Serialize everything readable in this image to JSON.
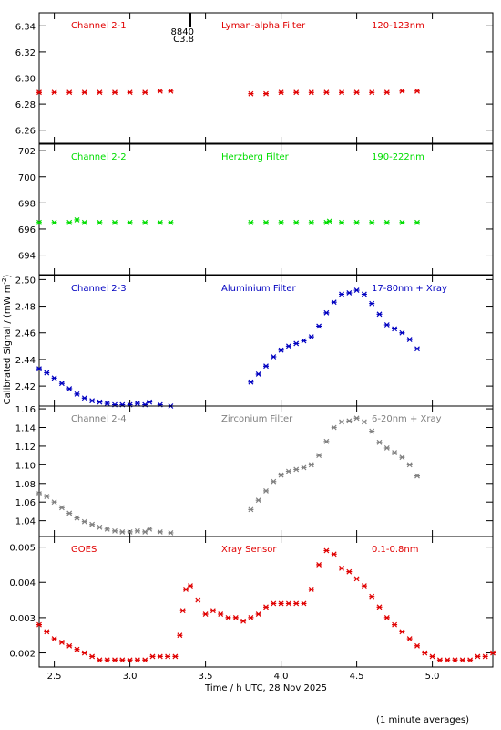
{
  "chart_data": [
    {
      "type": "scatter",
      "labels": [
        "Channel 2-1",
        "Lyman-alpha Filter",
        "120-123nm"
      ],
      "color": "#e00000",
      "ylim": [
        6.25,
        6.35
      ],
      "yticks": [
        "6.26",
        "6.28",
        "6.30",
        "6.32",
        "6.34"
      ],
      "marker_annotation": {
        "x": 3.4,
        "lines": [
          "8840",
          "C3.8"
        ]
      },
      "x": [
        2.4,
        2.5,
        2.6,
        2.7,
        2.8,
        2.9,
        3.0,
        3.1,
        3.2,
        3.27,
        3.8,
        3.9,
        4.0,
        4.1,
        4.2,
        4.3,
        4.4,
        4.5,
        4.6,
        4.7,
        4.8,
        4.9
      ],
      "y": [
        6.289,
        6.289,
        6.289,
        6.289,
        6.289,
        6.289,
        6.289,
        6.289,
        6.29,
        6.29,
        6.288,
        6.288,
        6.289,
        6.289,
        6.289,
        6.289,
        6.289,
        6.289,
        6.289,
        6.289,
        6.29,
        6.29
      ]
    },
    {
      "type": "scatter",
      "labels": [
        "Channel 2-2",
        "Herzberg Filter",
        "190-222nm"
      ],
      "color": "#00dd00",
      "ylim": [
        692.5,
        702.5
      ],
      "yticks": [
        "694",
        "696",
        "698",
        "700",
        "702"
      ],
      "x": [
        2.4,
        2.5,
        2.6,
        2.65,
        2.7,
        2.8,
        2.9,
        3.0,
        3.1,
        3.2,
        3.27,
        3.8,
        3.9,
        4.0,
        4.1,
        4.2,
        4.3,
        4.32,
        4.4,
        4.5,
        4.6,
        4.7,
        4.8,
        4.9
      ],
      "y": [
        696.5,
        696.5,
        696.5,
        696.7,
        696.5,
        696.5,
        696.5,
        696.5,
        696.5,
        696.5,
        696.5,
        696.5,
        696.5,
        696.5,
        696.5,
        696.5,
        696.5,
        696.6,
        696.5,
        696.5,
        696.5,
        696.5,
        696.5,
        696.5
      ]
    },
    {
      "type": "scatter",
      "labels": [
        "Channel 2-3",
        "Aluminium Filter",
        "17-80nm + Xray"
      ],
      "color": "#0000c0",
      "ylim": [
        2.405,
        2.503
      ],
      "yticks": [
        "2.42",
        "2.44",
        "2.46",
        "2.48",
        "2.50"
      ],
      "x": [
        2.4,
        2.45,
        2.5,
        2.55,
        2.6,
        2.65,
        2.7,
        2.75,
        2.8,
        2.85,
        2.9,
        2.95,
        3.0,
        3.05,
        3.1,
        3.13,
        3.2,
        3.27,
        3.8,
        3.85,
        3.9,
        3.95,
        4.0,
        4.05,
        4.1,
        4.15,
        4.2,
        4.25,
        4.3,
        4.35,
        4.4,
        4.45,
        4.5,
        4.55,
        4.6,
        4.65,
        4.7,
        4.75,
        4.8,
        4.85,
        4.9
      ],
      "y": [
        2.433,
        2.43,
        2.426,
        2.422,
        2.418,
        2.414,
        2.411,
        2.409,
        2.408,
        2.407,
        2.406,
        2.406,
        2.406,
        2.407,
        2.406,
        2.408,
        2.406,
        2.405,
        2.423,
        2.429,
        2.435,
        2.442,
        2.447,
        2.45,
        2.452,
        2.454,
        2.457,
        2.465,
        2.475,
        2.483,
        2.489,
        2.49,
        2.492,
        2.489,
        2.482,
        2.474,
        2.466,
        2.463,
        2.46,
        2.455,
        2.448
      ]
    },
    {
      "type": "scatter",
      "labels": [
        "Channel 2-4",
        "Zirconium Filter",
        "6-20nm + Xray"
      ],
      "color": "#808080",
      "ylim": [
        1.023,
        1.163
      ],
      "yticks": [
        "1.04",
        "1.06",
        "1.08",
        "1.10",
        "1.12",
        "1.14",
        "1.16"
      ],
      "x": [
        2.4,
        2.45,
        2.5,
        2.55,
        2.6,
        2.65,
        2.7,
        2.75,
        2.8,
        2.85,
        2.9,
        2.95,
        3.0,
        3.05,
        3.1,
        3.13,
        3.2,
        3.27,
        3.8,
        3.85,
        3.9,
        3.95,
        4.0,
        4.05,
        4.1,
        4.15,
        4.2,
        4.25,
        4.3,
        4.35,
        4.4,
        4.45,
        4.5,
        4.55,
        4.6,
        4.65,
        4.7,
        4.75,
        4.8,
        4.85,
        4.9
      ],
      "y": [
        1.069,
        1.066,
        1.06,
        1.054,
        1.048,
        1.043,
        1.039,
        1.036,
        1.033,
        1.031,
        1.029,
        1.028,
        1.028,
        1.029,
        1.028,
        1.031,
        1.028,
        1.027,
        1.052,
        1.062,
        1.072,
        1.082,
        1.089,
        1.093,
        1.095,
        1.097,
        1.1,
        1.11,
        1.125,
        1.14,
        1.146,
        1.147,
        1.15,
        1.146,
        1.136,
        1.124,
        1.118,
        1.113,
        1.108,
        1.1,
        1.088
      ]
    },
    {
      "type": "scatter",
      "labels": [
        "GOES",
        "Xray Sensor",
        "0.1-0.8nm"
      ],
      "color": "#e00000",
      "ylim": [
        0.0016,
        0.0053
      ],
      "yticks": [
        "0.002",
        "0.003",
        "0.004",
        "0.005"
      ],
      "xlabel": "Time / h UTC, 28 Nov 2025",
      "xlim": [
        2.4,
        5.4
      ],
      "xticks": [
        "2.5",
        "3.0",
        "3.5",
        "4.0",
        "4.5",
        "5.0"
      ],
      "x": [
        2.4,
        2.45,
        2.5,
        2.55,
        2.6,
        2.65,
        2.7,
        2.75,
        2.8,
        2.85,
        2.9,
        2.95,
        3.0,
        3.05,
        3.1,
        3.15,
        3.2,
        3.25,
        3.3,
        3.33,
        3.35,
        3.37,
        3.4,
        3.45,
        3.5,
        3.55,
        3.6,
        3.65,
        3.7,
        3.75,
        3.8,
        3.85,
        3.9,
        3.95,
        4.0,
        4.05,
        4.1,
        4.15,
        4.2,
        4.25,
        4.3,
        4.35,
        4.4,
        4.45,
        4.5,
        4.55,
        4.6,
        4.65,
        4.7,
        4.75,
        4.8,
        4.85,
        4.9,
        4.95,
        5.0,
        5.05,
        5.1,
        5.15,
        5.2,
        5.25,
        5.3,
        5.35,
        5.4
      ],
      "y": [
        0.0028,
        0.0026,
        0.0024,
        0.0023,
        0.0022,
        0.0021,
        0.002,
        0.0019,
        0.0018,
        0.0018,
        0.0018,
        0.0018,
        0.0018,
        0.0018,
        0.0018,
        0.0019,
        0.0019,
        0.0019,
        0.0019,
        0.0025,
        0.0032,
        0.0038,
        0.0039,
        0.0035,
        0.0031,
        0.0032,
        0.0031,
        0.003,
        0.003,
        0.0029,
        0.003,
        0.0031,
        0.0033,
        0.0034,
        0.0034,
        0.0034,
        0.0034,
        0.0034,
        0.0038,
        0.0045,
        0.0049,
        0.0048,
        0.0044,
        0.0043,
        0.0041,
        0.0039,
        0.0036,
        0.0033,
        0.003,
        0.0028,
        0.0026,
        0.0024,
        0.0022,
        0.002,
        0.0019,
        0.0018,
        0.0018,
        0.0018,
        0.0018,
        0.0018,
        0.0019,
        0.0019,
        0.002
      ]
    }
  ],
  "y_axis_label": "Calibrated Signal / (mW m",
  "y_axis_label_sup": "-2",
  "y_axis_label_end": ")",
  "footnote": "(1 minute averages)"
}
